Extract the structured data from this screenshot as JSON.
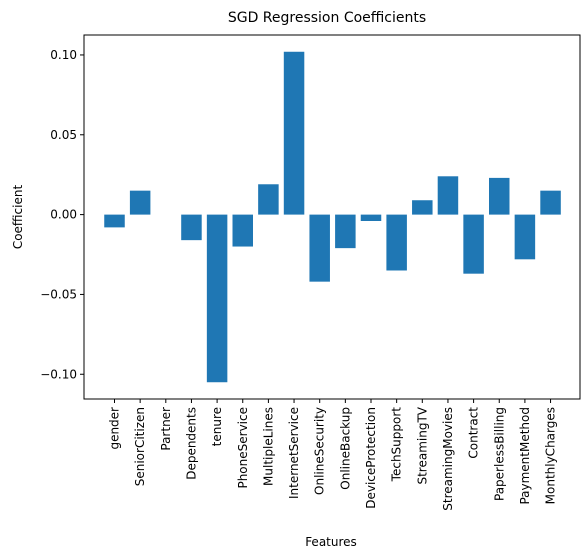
{
  "chart_data": {
    "type": "bar",
    "title": "SGD Regression Coefficients",
    "xlabel": "Features",
    "ylabel": "Coefficient",
    "categories": [
      "gender",
      "SeniorCitizen",
      "Partner",
      "Dependents",
      "tenure",
      "PhoneService",
      "MultipleLines",
      "InternetService",
      "OnlineSecurity",
      "OnlineBackup",
      "DeviceProtection",
      "TechSupport",
      "StreamingTV",
      "StreamingMovies",
      "Contract",
      "PaperlessBilling",
      "PaymentMethod",
      "MonthlyCharges"
    ],
    "values": [
      -0.008,
      0.015,
      0.0,
      -0.016,
      -0.105,
      -0.02,
      0.019,
      0.102,
      -0.042,
      -0.021,
      -0.004,
      -0.035,
      0.009,
      0.024,
      -0.037,
      0.023,
      -0.028,
      0.015
    ],
    "yticks": [
      -0.1,
      -0.05,
      0.0,
      0.05,
      0.1
    ],
    "ytick_labels": [
      "−0.10",
      "−0.05",
      "0.00",
      "0.05",
      "0.10"
    ],
    "ylim": [
      -0.1155,
      0.1125
    ],
    "bar_color": "#1f77b4",
    "grid": false,
    "legend": false
  }
}
